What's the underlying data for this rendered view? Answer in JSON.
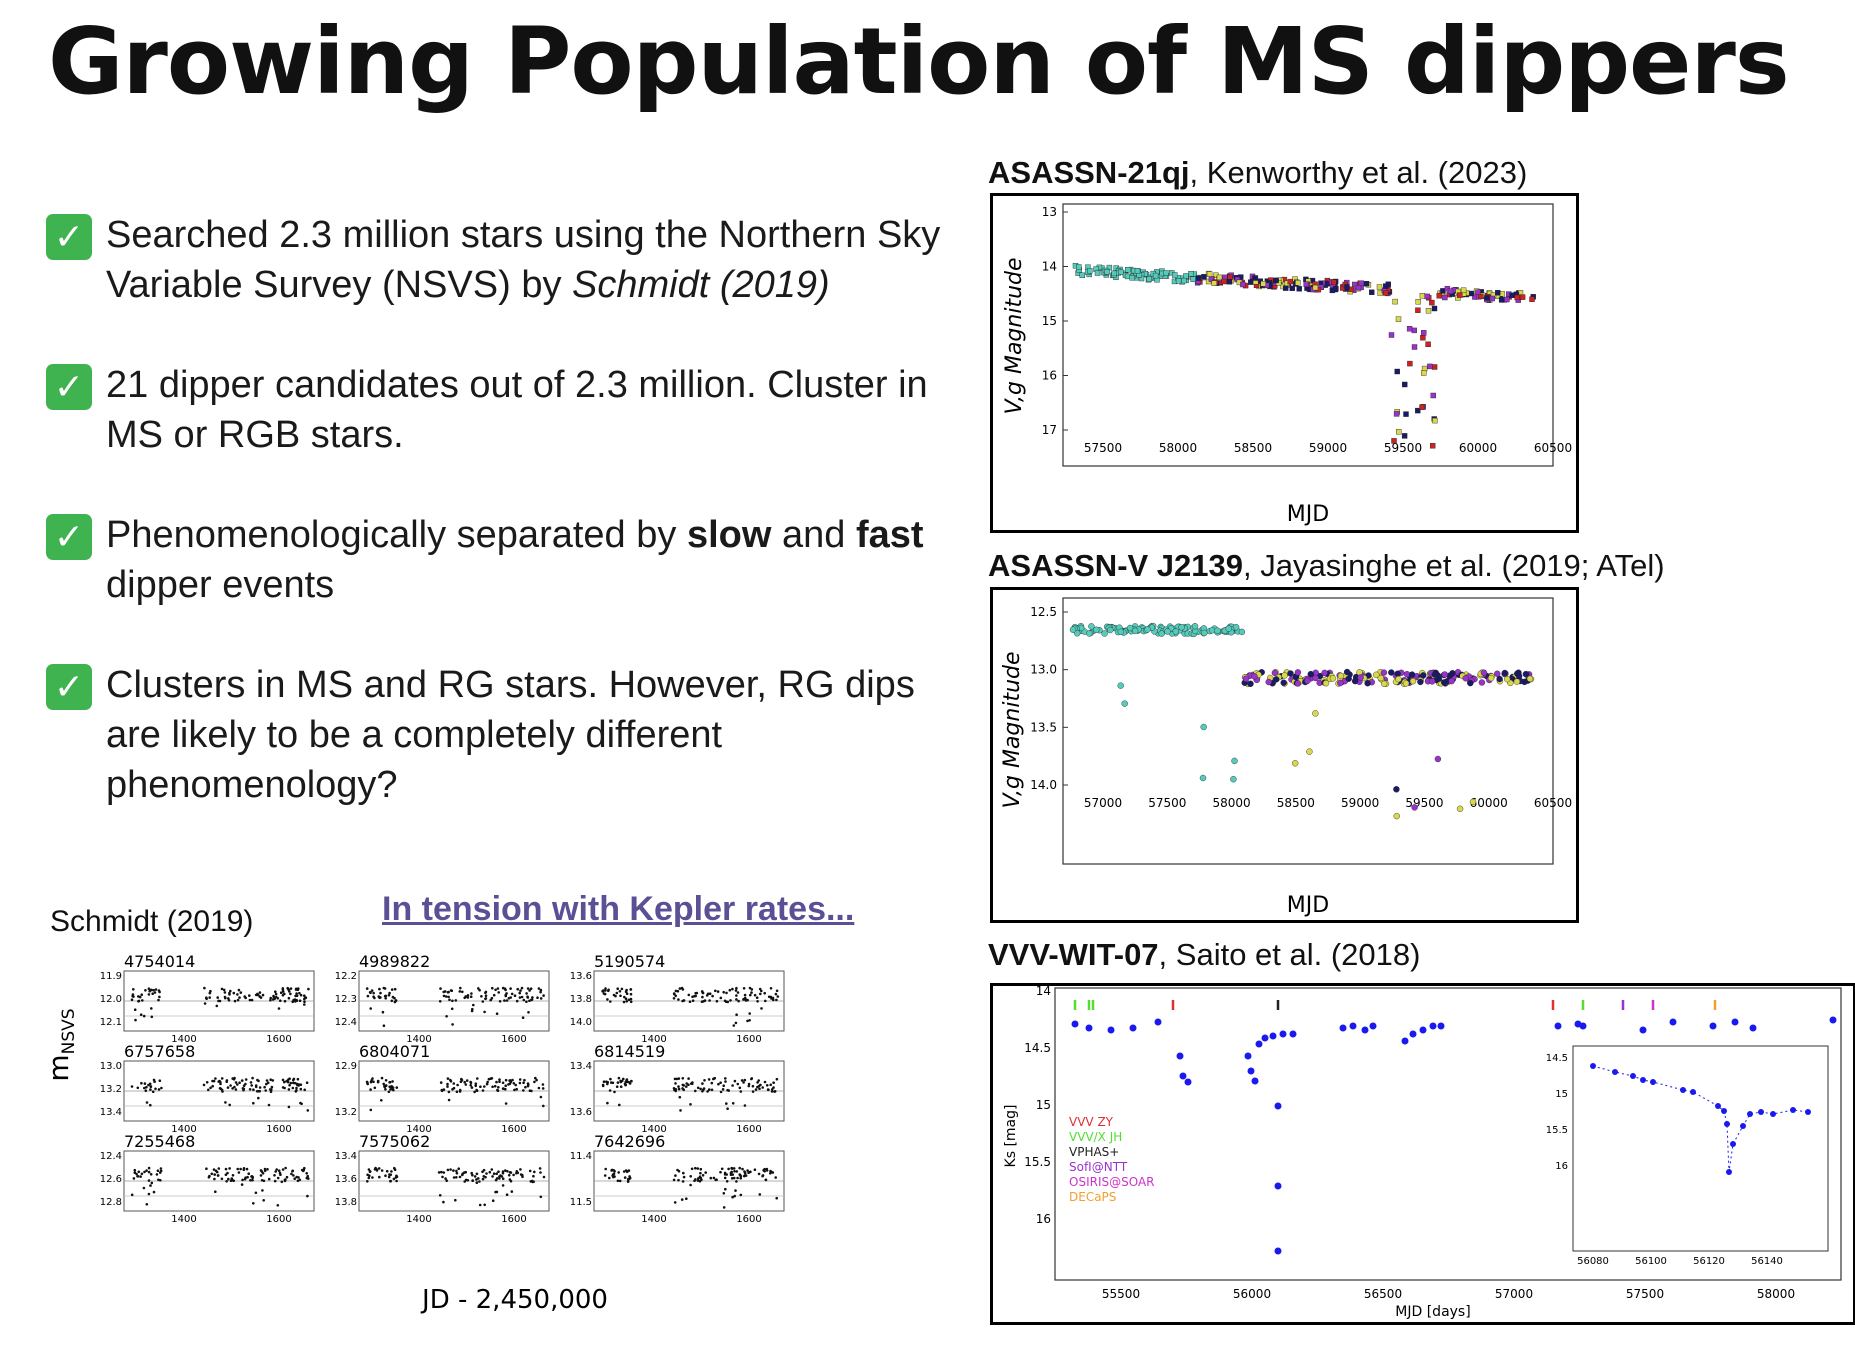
{
  "title": "Growing Population of MS dippers",
  "bullets": [
    {
      "pre": "Searched 2.3 million stars using the Northern Sky Variable Survey (NSVS) by ",
      "em": "Schmidt (2019)",
      "post": ""
    },
    {
      "text": "21 dipper candidates out of 2.3 million. Cluster in MS or RGB stars."
    },
    {
      "pre": "Phenomenologically separated  by ",
      "b1": "slow",
      "mid": " and ",
      "b2": "fast",
      "post": " dipper events"
    },
    {
      "text": "Clusters in MS and RG stars. However, RG dips are likely to be a completely different phenomenology?"
    }
  ],
  "check_glyph": "✓",
  "schmidt_label": "Schmidt (2019)",
  "tension_link": "In tension with Kepler rates...",
  "schmidt_grid": {
    "ylabel": "m",
    "ylabel_sub": "NSVS",
    "xlabel": "JD - 2,450,000",
    "panels": [
      {
        "id": "4754014",
        "yticks": [
          "11.9",
          "12.0",
          "12.1"
        ],
        "xticks": [
          "1400",
          "1600"
        ]
      },
      {
        "id": "4989822",
        "yticks": [
          "12.2",
          "12.3",
          "12.4"
        ],
        "xticks": [
          "1400",
          "1600"
        ]
      },
      {
        "id": "5190574",
        "yticks": [
          "13.6",
          "13.8",
          "14.0"
        ],
        "xticks": [
          "1400",
          "1600"
        ]
      },
      {
        "id": "6757658",
        "yticks": [
          "13.0",
          "13.2",
          "13.4"
        ],
        "xticks": [
          "1400",
          "1600"
        ]
      },
      {
        "id": "6804071",
        "yticks": [
          "12.9",
          "13.2"
        ],
        "xticks": [
          "1400",
          "1600"
        ]
      },
      {
        "id": "6814519",
        "yticks": [
          "13.4",
          "13.6"
        ],
        "xticks": [
          "1400",
          "1600"
        ]
      },
      {
        "id": "7255468",
        "yticks": [
          "12.4",
          "12.6",
          "12.8"
        ],
        "xticks": [
          "1400",
          "1600"
        ]
      },
      {
        "id": "7575062",
        "yticks": [
          "13.4",
          "13.6",
          "13.8"
        ],
        "xticks": [
          "1400",
          "1600"
        ]
      },
      {
        "id": "7642696",
        "yticks": [
          "11.4",
          "11.5"
        ],
        "xticks": [
          "1400",
          "1600"
        ]
      }
    ]
  },
  "fig1": {
    "name_bold": "ASASSN-21qj",
    "name_rest": ", Kenworthy et al. (2023)",
    "xlabel": "MJD",
    "ylabel": "V,g Magnitude",
    "xticks": [
      "57500",
      "58000",
      "58500",
      "59000",
      "59500",
      "60000",
      "60500"
    ],
    "yticks": [
      "13",
      "14",
      "15",
      "16",
      "17"
    ]
  },
  "fig2": {
    "name_bold": "ASASSN-V J2139",
    "name_rest": ", Jayasinghe et al. (2019; ATel)",
    "xlabel": "MJD",
    "ylabel": "V,g Magnitude",
    "xticks": [
      "57000",
      "57500",
      "58000",
      "58500",
      "59000",
      "59500",
      "60000",
      "60500"
    ],
    "yticks": [
      "12.5",
      "13.0",
      "13.5",
      "14.0"
    ]
  },
  "fig3": {
    "name_bold": "VVV-WIT-07",
    "name_rest": ", Saito et al. (2018)",
    "xlabel": "MJD [days]",
    "ylabel": "Ks [mag]",
    "xticks": [
      "55500",
      "56000",
      "56500",
      "57000",
      "57500",
      "58000"
    ],
    "yticks": [
      "14",
      "14.5",
      "15",
      "15.5",
      "16"
    ],
    "legend": [
      {
        "label": "VVV  ZY",
        "color": "#e03030"
      },
      {
        "label": "VVV/X  JH",
        "color": "#55dd33"
      },
      {
        "label": "VPHAS+",
        "color": "#222222"
      },
      {
        "label": "SofI@NTT",
        "color": "#9933cc"
      },
      {
        "label": "OSIRIS@SOAR",
        "color": "#cc33cc"
      },
      {
        "label": "DECaPS",
        "color": "#f0a030"
      }
    ],
    "inset_xticks": [
      "56080",
      "56100",
      "56120",
      "56140"
    ],
    "inset_yticks": [
      "14.5",
      "15",
      "15.5",
      "16"
    ]
  },
  "colors": {
    "check": "#3fb34f",
    "link": "#5b4f96",
    "points_blue": "#1a1aee"
  }
}
